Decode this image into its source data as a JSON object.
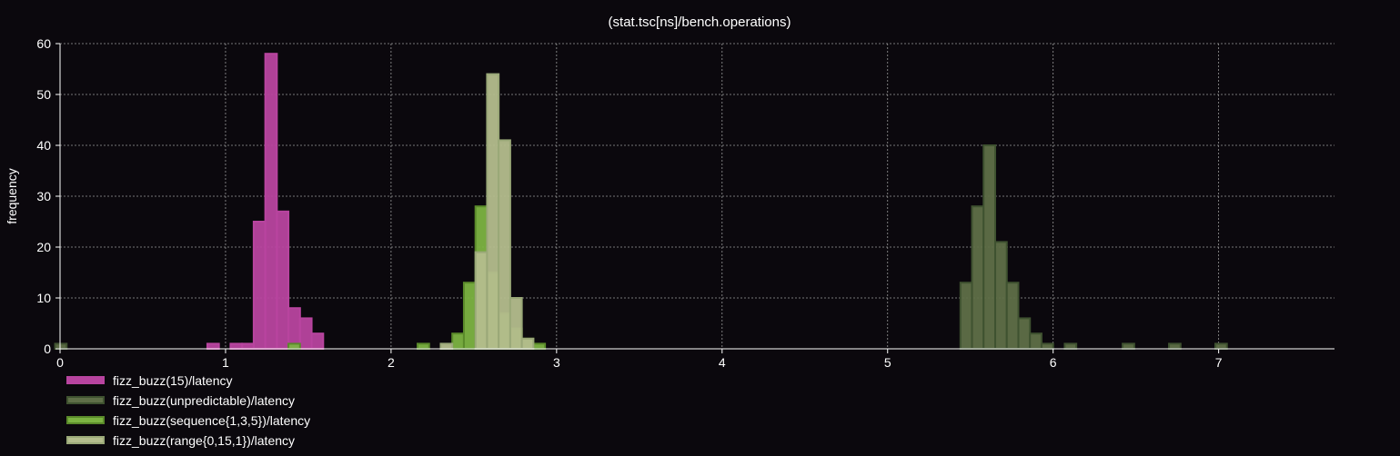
{
  "chart_data": {
    "type": "bar",
    "title": "(stat.tsc[ns]/bench.operations)",
    "xlabel": "",
    "ylabel": "frequency",
    "xlim": [
      0,
      7.7
    ],
    "ylim": [
      0,
      60
    ],
    "x_ticks": [
      0,
      1,
      2,
      3,
      4,
      5,
      6,
      7
    ],
    "y_ticks": [
      0,
      10,
      20,
      30,
      40,
      50,
      60
    ],
    "grid": true,
    "legend_position": "bottom-left",
    "bin_width": 0.07,
    "series": [
      {
        "name": "fizz_buzz(15)/latency",
        "color": "#b8449f",
        "fill": "#b8449f",
        "bins": [
          {
            "x": 0.925,
            "y": 1
          },
          {
            "x": 1.065,
            "y": 1
          },
          {
            "x": 1.135,
            "y": 1
          },
          {
            "x": 1.205,
            "y": 25
          },
          {
            "x": 1.275,
            "y": 58
          },
          {
            "x": 1.345,
            "y": 27
          },
          {
            "x": 1.415,
            "y": 8
          },
          {
            "x": 1.485,
            "y": 6
          },
          {
            "x": 1.555,
            "y": 3
          }
        ]
      },
      {
        "name": "fizz_buzz(unpredictable)/latency",
        "color": "#3f5230",
        "fill": "#5f6f48",
        "bins": [
          {
            "x": 0.005,
            "y": 1
          },
          {
            "x": 5.475,
            "y": 13
          },
          {
            "x": 5.545,
            "y": 28
          },
          {
            "x": 5.615,
            "y": 40
          },
          {
            "x": 5.685,
            "y": 21
          },
          {
            "x": 5.755,
            "y": 13
          },
          {
            "x": 5.825,
            "y": 6
          },
          {
            "x": 5.895,
            "y": 3
          },
          {
            "x": 5.965,
            "y": 1
          },
          {
            "x": 6.105,
            "y": 1
          },
          {
            "x": 6.455,
            "y": 1
          },
          {
            "x": 6.735,
            "y": 1
          },
          {
            "x": 7.015,
            "y": 1
          }
        ]
      },
      {
        "name": "fizz_buzz(sequence{1,3,5})/latency",
        "color": "#5a8a2a",
        "fill": "#7cb342",
        "bins": [
          {
            "x": 1.415,
            "y": 1
          },
          {
            "x": 2.195,
            "y": 1
          },
          {
            "x": 2.405,
            "y": 3
          },
          {
            "x": 2.475,
            "y": 13
          },
          {
            "x": 2.545,
            "y": 28
          },
          {
            "x": 2.615,
            "y": 15
          },
          {
            "x": 2.685,
            "y": 7
          },
          {
            "x": 2.755,
            "y": 4
          },
          {
            "x": 2.825,
            "y": 2
          },
          {
            "x": 2.895,
            "y": 1
          }
        ]
      },
      {
        "name": "fizz_buzz(range{0,15,1})/latency",
        "color": "#9aa878",
        "fill": "#b4bd8d",
        "bins": [
          {
            "x": 2.335,
            "y": 1
          },
          {
            "x": 2.545,
            "y": 19
          },
          {
            "x": 2.615,
            "y": 54
          },
          {
            "x": 2.685,
            "y": 41
          },
          {
            "x": 2.755,
            "y": 10
          },
          {
            "x": 2.825,
            "y": 2
          }
        ]
      }
    ]
  }
}
